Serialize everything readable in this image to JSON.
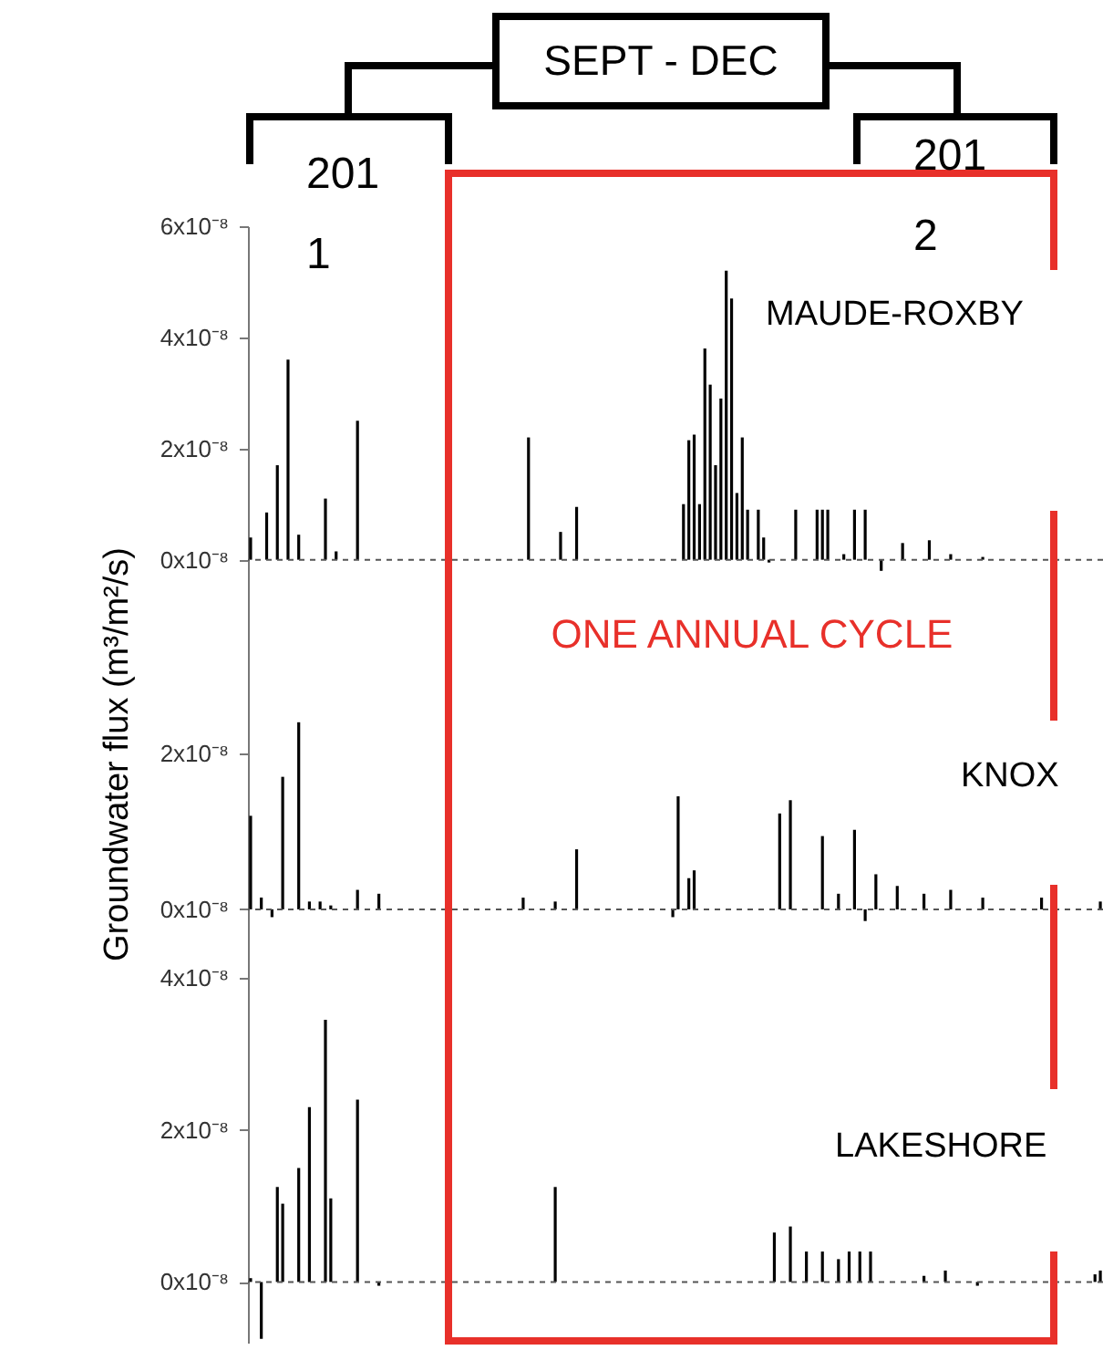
{
  "chart_data": [
    {
      "type": "bar",
      "categories": [
        null,
        null,
        null,
        null,
        null,
        null,
        null,
        null,
        null,
        null,
        null,
        null,
        null,
        null,
        null,
        null,
        null,
        null,
        null,
        null,
        null,
        null,
        null,
        null,
        null,
        null,
        null,
        null,
        null,
        null,
        null,
        null,
        null,
        null,
        null,
        null,
        null,
        null,
        null,
        null,
        null,
        null,
        null,
        null,
        null,
        null,
        null,
        null,
        null,
        null,
        null,
        null,
        null,
        null,
        null,
        null,
        null,
        null,
        null,
        null,
        null,
        null,
        null,
        null,
        null,
        null,
        null,
        null,
        null,
        null,
        null,
        null,
        null,
        null,
        null,
        null,
        null,
        null,
        null,
        null,
        null,
        null,
        null,
        null,
        null,
        null,
        null,
        null,
        null,
        null,
        null,
        null,
        null,
        null,
        null,
        null,
        null,
        null,
        null,
        null,
        null,
        null,
        null,
        null,
        null,
        null,
        null,
        null,
        null,
        null,
        null,
        null,
        null,
        null,
        null,
        null,
        null,
        null,
        null,
        null,
        null,
        null,
        null,
        null,
        null,
        null,
        null,
        null,
        null,
        null,
        null,
        null,
        null,
        null,
        null,
        null,
        null,
        null,
        null,
        null,
        null,
        null,
        null,
        null,
        null,
        null,
        null,
        null,
        null,
        null,
        null,
        null,
        null,
        null,
        null,
        null,
        null,
        null,
        null,
        null
      ],
      "series": [
        {
          "name": "MAUDE-ROXBY",
          "color": "#000000",
          "values": [
            4e-09,
            null,
            null,
            8.5e-09,
            null,
            1.7e-08,
            null,
            3.6e-08,
            null,
            4.5e-09,
            null,
            null,
            null,
            null,
            1.1e-08,
            null,
            1.5e-09,
            null,
            null,
            null,
            2.5e-08,
            null,
            null,
            null,
            null,
            null,
            null,
            null,
            null,
            null,
            null,
            null,
            null,
            null,
            null,
            null,
            null,
            null,
            null,
            null,
            null,
            null,
            null,
            null,
            null,
            null,
            null,
            null,
            null,
            null,
            null,
            null,
            2.2e-08,
            null,
            null,
            null,
            null,
            null,
            5e-09,
            null,
            null,
            9.5e-09,
            null,
            null,
            null,
            null,
            null,
            null,
            null,
            null,
            null,
            null,
            null,
            null,
            null,
            null,
            null,
            null,
            null,
            null,
            null,
            1e-08,
            2.15e-08,
            2.25e-08,
            1e-08,
            3.8e-08,
            3.15e-08,
            1.7e-08,
            2.9e-08,
            5.2e-08,
            4.7e-08,
            1.2e-08,
            2.2e-08,
            9e-09,
            null,
            9e-09,
            4e-09,
            -5e-10,
            null,
            null,
            null,
            null,
            9e-09,
            null,
            null,
            null,
            9e-09,
            9e-09,
            9e-09,
            null,
            null,
            1e-09,
            null,
            9e-09,
            null,
            9e-09,
            null,
            null,
            -2e-09,
            null,
            null,
            null,
            3e-09,
            null,
            null,
            null,
            null,
            3.5e-09,
            null,
            null,
            null,
            1e-09,
            null,
            null,
            null,
            null,
            null,
            5e-10,
            null,
            null,
            null,
            null,
            null,
            null,
            null,
            null,
            null,
            null,
            null,
            null,
            null,
            null,
            null,
            null,
            null,
            null,
            null,
            null,
            null,
            null
          ]
        }
      ],
      "ylim": [
        -4e-09,
        6e-08
      ],
      "yticks": [
        {
          "value": 0,
          "label": "0x10⁻⁸"
        },
        {
          "value": 2e-08,
          "label": "2x10⁻⁸"
        },
        {
          "value": 4e-08,
          "label": "4x10⁻⁸"
        },
        {
          "value": 6e-08,
          "label": "6x10⁻⁸"
        }
      ],
      "ref_lines": [
        {
          "axis": "y",
          "value": 0,
          "line_style": "dashed"
        }
      ],
      "tick_labels": "y",
      "annotations": [
        "SEPT - DEC",
        "2011",
        "2012",
        "ONE ANNUAL CYCLE"
      ]
    },
    {
      "type": "bar",
      "categories": [
        null,
        null,
        null,
        null,
        null,
        null,
        null,
        null,
        null,
        null,
        null,
        null,
        null,
        null,
        null,
        null,
        null,
        null,
        null,
        null,
        null,
        null,
        null,
        null,
        null,
        null,
        null,
        null,
        null,
        null,
        null,
        null,
        null,
        null,
        null,
        null,
        null,
        null,
        null,
        null,
        null,
        null,
        null,
        null,
        null,
        null,
        null,
        null,
        null,
        null,
        null,
        null,
        null,
        null,
        null,
        null,
        null,
        null,
        null,
        null,
        null,
        null,
        null,
        null,
        null,
        null,
        null,
        null,
        null,
        null,
        null,
        null,
        null,
        null,
        null,
        null,
        null,
        null,
        null,
        null,
        null,
        null,
        null,
        null,
        null,
        null,
        null,
        null,
        null,
        null,
        null,
        null,
        null,
        null,
        null,
        null,
        null,
        null,
        null,
        null,
        null,
        null,
        null,
        null,
        null,
        null,
        null,
        null,
        null,
        null,
        null,
        null,
        null,
        null,
        null,
        null,
        null,
        null,
        null,
        null,
        null,
        null,
        null,
        null,
        null,
        null,
        null,
        null,
        null,
        null,
        null,
        null,
        null,
        null,
        null,
        null,
        null,
        null,
        null,
        null,
        null,
        null,
        null,
        null,
        null,
        null,
        null,
        null,
        null,
        null,
        null,
        null,
        null,
        null,
        null,
        null,
        null,
        null,
        null,
        null
      ],
      "series": [
        {
          "name": "KNOX",
          "color": "#000000",
          "values": [
            1.2e-08,
            null,
            1.5e-09,
            null,
            -1e-09,
            null,
            1.7e-08,
            null,
            null,
            2.4e-08,
            null,
            1e-09,
            null,
            1e-09,
            null,
            5e-10,
            null,
            null,
            null,
            null,
            2.5e-09,
            null,
            null,
            null,
            2e-09,
            null,
            null,
            null,
            null,
            null,
            null,
            null,
            null,
            null,
            null,
            null,
            null,
            null,
            null,
            null,
            null,
            null,
            null,
            null,
            null,
            null,
            null,
            null,
            null,
            null,
            null,
            1.5e-09,
            null,
            null,
            null,
            null,
            null,
            1e-09,
            null,
            null,
            null,
            7.7e-09,
            null,
            null,
            null,
            null,
            null,
            null,
            null,
            null,
            null,
            null,
            null,
            null,
            null,
            null,
            null,
            null,
            null,
            -1e-09,
            1.45e-08,
            null,
            4e-09,
            5e-09,
            null,
            null,
            null,
            null,
            null,
            null,
            null,
            null,
            null,
            null,
            null,
            null,
            null,
            null,
            null,
            1.23e-08,
            null,
            1.4e-08,
            null,
            null,
            null,
            null,
            null,
            9.4e-09,
            null,
            null,
            2e-09,
            null,
            null,
            1.02e-08,
            null,
            -1.5e-09,
            null,
            4.5e-09,
            null,
            null,
            null,
            3e-09,
            null,
            null,
            null,
            null,
            2e-09,
            null,
            null,
            null,
            null,
            2.5e-09,
            null,
            null,
            null,
            null,
            null,
            1.5e-09,
            null,
            null,
            null,
            null,
            null,
            null,
            null,
            null,
            null,
            null,
            1.5e-09,
            null,
            null,
            null,
            null,
            null,
            null,
            null,
            null,
            null,
            null,
            1e-09
          ]
        }
      ],
      "ylim": [
        -2e-09,
        4.2e-08
      ],
      "yticks": [
        {
          "value": 0,
          "label": "0x10⁻⁸"
        },
        {
          "value": 2e-08,
          "label": "2x10⁻⁸"
        }
      ],
      "ylabel": "Groundwater flux (m³/m²/s)",
      "ref_lines": [
        {
          "axis": "y",
          "value": 0,
          "line_style": "dashed"
        }
      ],
      "tick_labels": "y"
    },
    {
      "type": "bar",
      "categories": [
        null,
        null,
        null,
        null,
        null,
        null,
        null,
        null,
        null,
        null,
        null,
        null,
        null,
        null,
        null,
        null,
        null,
        null,
        null,
        null,
        null,
        null,
        null,
        null,
        null,
        null,
        null,
        null,
        null,
        null,
        null,
        null,
        null,
        null,
        null,
        null,
        null,
        null,
        null,
        null,
        null,
        null,
        null,
        null,
        null,
        null,
        null,
        null,
        null,
        null,
        null,
        null,
        null,
        null,
        null,
        null,
        null,
        null,
        null,
        null,
        null,
        null,
        null,
        null,
        null,
        null,
        null,
        null,
        null,
        null,
        null,
        null,
        null,
        null,
        null,
        null,
        null,
        null,
        null,
        null,
        null,
        null,
        null,
        null,
        null,
        null,
        null,
        null,
        null,
        null,
        null,
        null,
        null,
        null,
        null,
        null,
        null,
        null,
        null,
        null,
        null,
        null,
        null,
        null,
        null,
        null,
        null,
        null,
        null,
        null,
        null,
        null,
        null,
        null,
        null,
        null,
        null,
        null,
        null,
        null,
        null,
        null,
        null,
        null,
        null,
        null,
        null,
        null,
        null,
        null,
        null,
        null,
        null,
        null,
        null,
        null,
        null,
        null,
        null,
        null,
        null,
        null,
        null,
        null,
        null,
        null,
        null,
        null,
        null,
        null,
        null,
        null,
        null,
        null,
        null,
        null,
        null,
        null,
        null,
        null
      ],
      "series": [
        {
          "name": "LAKESHORE",
          "color": "#000000",
          "values": [
            5e-10,
            null,
            -7.5e-09,
            null,
            null,
            1.25e-08,
            1.03e-08,
            null,
            null,
            1.5e-08,
            null,
            2.3e-08,
            null,
            null,
            3.45e-08,
            1.1e-08,
            null,
            null,
            null,
            null,
            2.4e-08,
            null,
            null,
            null,
            -5e-10,
            null,
            null,
            null,
            null,
            null,
            null,
            null,
            null,
            null,
            null,
            null,
            null,
            null,
            null,
            null,
            null,
            null,
            null,
            null,
            null,
            null,
            null,
            null,
            null,
            null,
            null,
            null,
            null,
            null,
            null,
            null,
            null,
            1.25e-08,
            null,
            null,
            null,
            null,
            null,
            null,
            null,
            null,
            null,
            null,
            null,
            null,
            null,
            null,
            null,
            null,
            null,
            null,
            null,
            null,
            null,
            null,
            null,
            null,
            null,
            null,
            null,
            null,
            null,
            null,
            null,
            null,
            null,
            null,
            null,
            null,
            null,
            null,
            null,
            null,
            6.5e-09,
            null,
            null,
            7.3e-09,
            null,
            null,
            4e-09,
            null,
            null,
            4e-09,
            null,
            null,
            3e-09,
            null,
            4e-09,
            null,
            4e-09,
            null,
            4e-09,
            null,
            null,
            null,
            null,
            null,
            null,
            null,
            null,
            null,
            8e-10,
            null,
            null,
            null,
            1.5e-09,
            null,
            null,
            null,
            null,
            null,
            -5e-10,
            null,
            null,
            null,
            null,
            null,
            null,
            null,
            null,
            null,
            null,
            null,
            null,
            null,
            null,
            null,
            null,
            null,
            null,
            null,
            null,
            null,
            1e-09,
            1.5e-09
          ]
        }
      ],
      "ylim": [
        -8e-09,
        4.7e-08
      ],
      "yticks": [
        {
          "value": 0,
          "label": "0x10⁻⁸"
        },
        {
          "value": 2e-08,
          "label": "2x10⁻⁸"
        },
        {
          "value": 4e-08,
          "label": "4x10⁻⁸"
        }
      ],
      "ref_lines": [
        {
          "axis": "y",
          "value": 0,
          "line_style": "dashed"
        }
      ],
      "tick_labels": "y"
    }
  ]
}
